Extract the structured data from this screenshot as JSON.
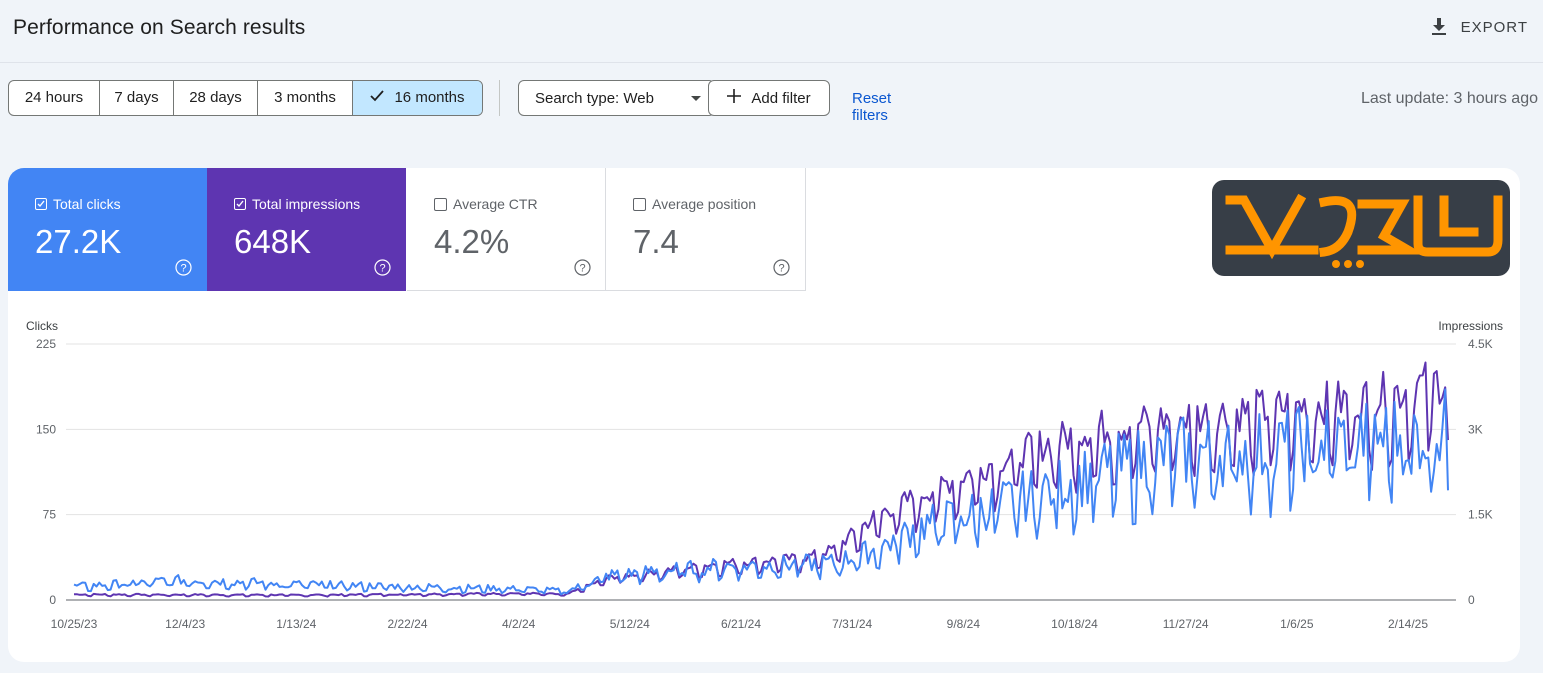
{
  "header": {
    "title": "Performance on Search results",
    "export_label": "EXPORT"
  },
  "filters": {
    "date_ranges": [
      "24 hours",
      "7 days",
      "28 days",
      "3 months",
      "16 months"
    ],
    "active_range": "16 months",
    "search_type": "Search type: Web",
    "add_filter": "Add filter",
    "reset": "Reset filters",
    "last_update": "Last update: 3 hours ago"
  },
  "metrics": [
    {
      "label": "Total clicks",
      "value": "27.2K",
      "checked": true,
      "color": "#4285f4"
    },
    {
      "label": "Total impressions",
      "value": "648K",
      "checked": true,
      "color": "#5e35b1"
    },
    {
      "label": "Average CTR",
      "value": "4.2%",
      "checked": false
    },
    {
      "label": "Average position",
      "value": "7.4",
      "checked": false
    }
  ],
  "chart_data": {
    "type": "line",
    "left_axis_title": "Clicks",
    "right_axis_title": "Impressions",
    "left_ticks": [
      "0",
      "75",
      "150",
      "225"
    ],
    "right_ticks": [
      "0",
      "1.5K",
      "3K",
      "4.5K"
    ],
    "ylim_left": [
      0,
      225
    ],
    "ylim_right": [
      0,
      4500
    ],
    "x_tick_labels": [
      "10/25/23",
      "12/4/23",
      "1/13/24",
      "2/22/24",
      "4/2/24",
      "5/12/24",
      "6/21/24",
      "7/31/24",
      "9/8/24",
      "10/18/24",
      "11/27/24",
      "1/6/25",
      "2/14/25"
    ],
    "series": [
      {
        "name": "Clicks",
        "axis": "left",
        "color": "#4285f4",
        "anchors": [
          [
            0,
            12
          ],
          [
            40,
            18
          ],
          [
            80,
            14
          ],
          [
            120,
            12
          ],
          [
            160,
            10
          ],
          [
            175,
            8
          ],
          [
            190,
            22
          ],
          [
            230,
            30
          ],
          [
            270,
            33
          ],
          [
            285,
            45
          ],
          [
            300,
            65
          ],
          [
            330,
            85
          ],
          [
            360,
            110
          ],
          [
            390,
            130
          ],
          [
            430,
            135
          ],
          [
            445,
            140
          ],
          [
            488,
            150
          ]
        ]
      },
      {
        "name": "Impressions",
        "axis": "right",
        "color": "#5e35b1",
        "anchors": [
          [
            0,
            100
          ],
          [
            80,
            90
          ],
          [
            160,
            120
          ],
          [
            175,
            100
          ],
          [
            190,
            400
          ],
          [
            230,
            650
          ],
          [
            260,
            750
          ],
          [
            270,
            900
          ],
          [
            285,
            1500
          ],
          [
            300,
            1850
          ],
          [
            330,
            2500
          ],
          [
            360,
            3000
          ],
          [
            390,
            3200
          ],
          [
            430,
            3400
          ],
          [
            460,
            3550
          ],
          [
            488,
            3900
          ]
        ]
      }
    ]
  },
  "colors": {
    "accent_blue": "#4285f4",
    "accent_purple": "#5e35b1",
    "link": "#0b57d0",
    "active_chip": "#c2e7ff"
  }
}
